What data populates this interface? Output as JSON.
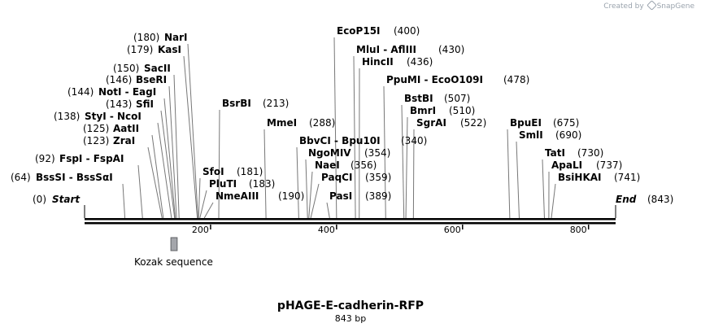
{
  "credit": {
    "prefix": "Created by",
    "brand": "SnapGene"
  },
  "map": {
    "name": "pHAGE-E-cadherin-RFP",
    "length_label": "843 bp",
    "length": 843,
    "ticks": [
      {
        "pos": 200,
        "label": "200"
      },
      {
        "pos": 400,
        "label": "400"
      },
      {
        "pos": 600,
        "label": "600"
      },
      {
        "pos": 800,
        "label": "800"
      }
    ],
    "start": {
      "name": "Start",
      "pos_label": "(0)"
    },
    "end": {
      "name": "End",
      "pos_label": "(843)"
    },
    "feature": {
      "name": "Kozak sequence",
      "start": 137,
      "end": 147
    },
    "sites_left": [
      {
        "id": "narI",
        "name": "NarI",
        "pos_label": "(180)",
        "pos": 180
      },
      {
        "id": "kasI",
        "name": "KasI",
        "pos_label": "(179)",
        "pos": 179
      },
      {
        "id": "sacII",
        "name": "SacII",
        "pos_label": "(150)",
        "pos": 150
      },
      {
        "id": "bseRI",
        "name": "BseRI",
        "pos_label": "(146)",
        "pos": 146
      },
      {
        "id": "notI",
        "name": "NotI - EagI",
        "pos_label": "(144)",
        "pos": 144
      },
      {
        "id": "sfiI",
        "name": "SfiI",
        "pos_label": "(143)",
        "pos": 143
      },
      {
        "id": "styI",
        "name": "StyI - NcoI",
        "pos_label": "(138)",
        "pos": 138
      },
      {
        "id": "aatII",
        "name": "AatII",
        "pos_label": "(125)",
        "pos": 125
      },
      {
        "id": "zraI",
        "name": "ZraI",
        "pos_label": "(123)",
        "pos": 123
      },
      {
        "id": "fspI",
        "name": "FspI - FspAI",
        "pos_label": "(92)",
        "pos": 92
      },
      {
        "id": "bssSI",
        "name": "BssSI - BssSαI",
        "pos_label": "(64)",
        "pos": 64
      }
    ],
    "sites_right": [
      {
        "id": "bsrBI",
        "name": "BsrBI",
        "pos_label": "(213)",
        "pos": 213
      },
      {
        "id": "sfoI",
        "name": "SfoI",
        "pos_label": "(181)",
        "pos": 181
      },
      {
        "id": "pluTI",
        "name": "PluTI",
        "pos_label": "(183)",
        "pos": 183
      },
      {
        "id": "nmeAIII",
        "name": "NmeAIII",
        "pos_label": "(190)",
        "pos": 190
      },
      {
        "id": "mmeI",
        "name": "MmeI",
        "pos_label": "(288)",
        "pos": 288
      },
      {
        "id": "bbvCI",
        "name": "BbvCI - Bpu10I",
        "pos_label": "(340)",
        "pos": 340
      },
      {
        "id": "ngoMIV",
        "name": "NgoMIV",
        "pos_label": "(354)",
        "pos": 354
      },
      {
        "id": "naeI",
        "name": "NaeI",
        "pos_label": "(356)",
        "pos": 356
      },
      {
        "id": "paqCI",
        "name": "PaqCI",
        "pos_label": "(359)",
        "pos": 359
      },
      {
        "id": "pasI",
        "name": "PasI",
        "pos_label": "(389)",
        "pos": 389
      },
      {
        "id": "ecoP15I",
        "name": "EcoP15I",
        "pos_label": "(400)",
        "pos": 400
      },
      {
        "id": "mluI",
        "name": "MluI - AflIII",
        "pos_label": "(430)",
        "pos": 430
      },
      {
        "id": "hincII",
        "name": "HincII",
        "pos_label": "(436)",
        "pos": 436
      },
      {
        "id": "ppuMI",
        "name": "PpuMI - EcoO109I",
        "pos_label": "(478)",
        "pos": 478
      },
      {
        "id": "bstBI",
        "name": "BstBI",
        "pos_label": "(507)",
        "pos": 507
      },
      {
        "id": "bmrI",
        "name": "BmrI",
        "pos_label": "(510)",
        "pos": 510
      },
      {
        "id": "sgrAI",
        "name": "SgrAI",
        "pos_label": "(522)",
        "pos": 522
      },
      {
        "id": "bpuEI",
        "name": "BpuEI",
        "pos_label": "(675)",
        "pos": 675
      },
      {
        "id": "smlI",
        "name": "SmlI",
        "pos_label": "(690)",
        "pos": 690
      },
      {
        "id": "tatI",
        "name": "TatI",
        "pos_label": "(730)",
        "pos": 730
      },
      {
        "id": "apaLI",
        "name": "ApaLI",
        "pos_label": "(737)",
        "pos": 737
      },
      {
        "id": "bsiHKAI",
        "name": "BsiHKAI",
        "pos_label": "(741)",
        "pos": 741
      }
    ]
  }
}
